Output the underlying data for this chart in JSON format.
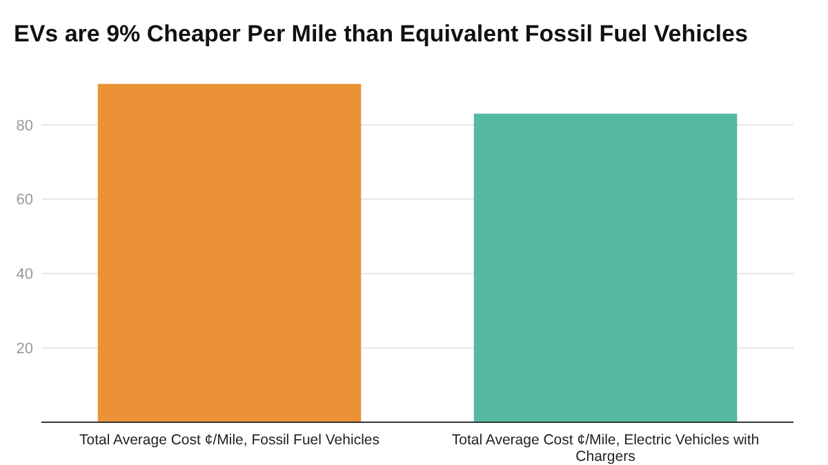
{
  "chart_data": {
    "type": "bar",
    "title": "EVs are 9% Cheaper Per Mile than Equivalent Fossil Fuel Vehicles",
    "categories": [
      "Total Average Cost ¢/Mile, Fossil Fuel Vehicles",
      "Total Average Cost ¢/Mile, Electric Vehicles with Chargers"
    ],
    "values": [
      91,
      83
    ],
    "colors": [
      "#ea9235",
      "#55b9a1"
    ],
    "ylim": [
      0,
      91
    ],
    "yticks": [
      20,
      40,
      60,
      80
    ],
    "grid": "y"
  }
}
